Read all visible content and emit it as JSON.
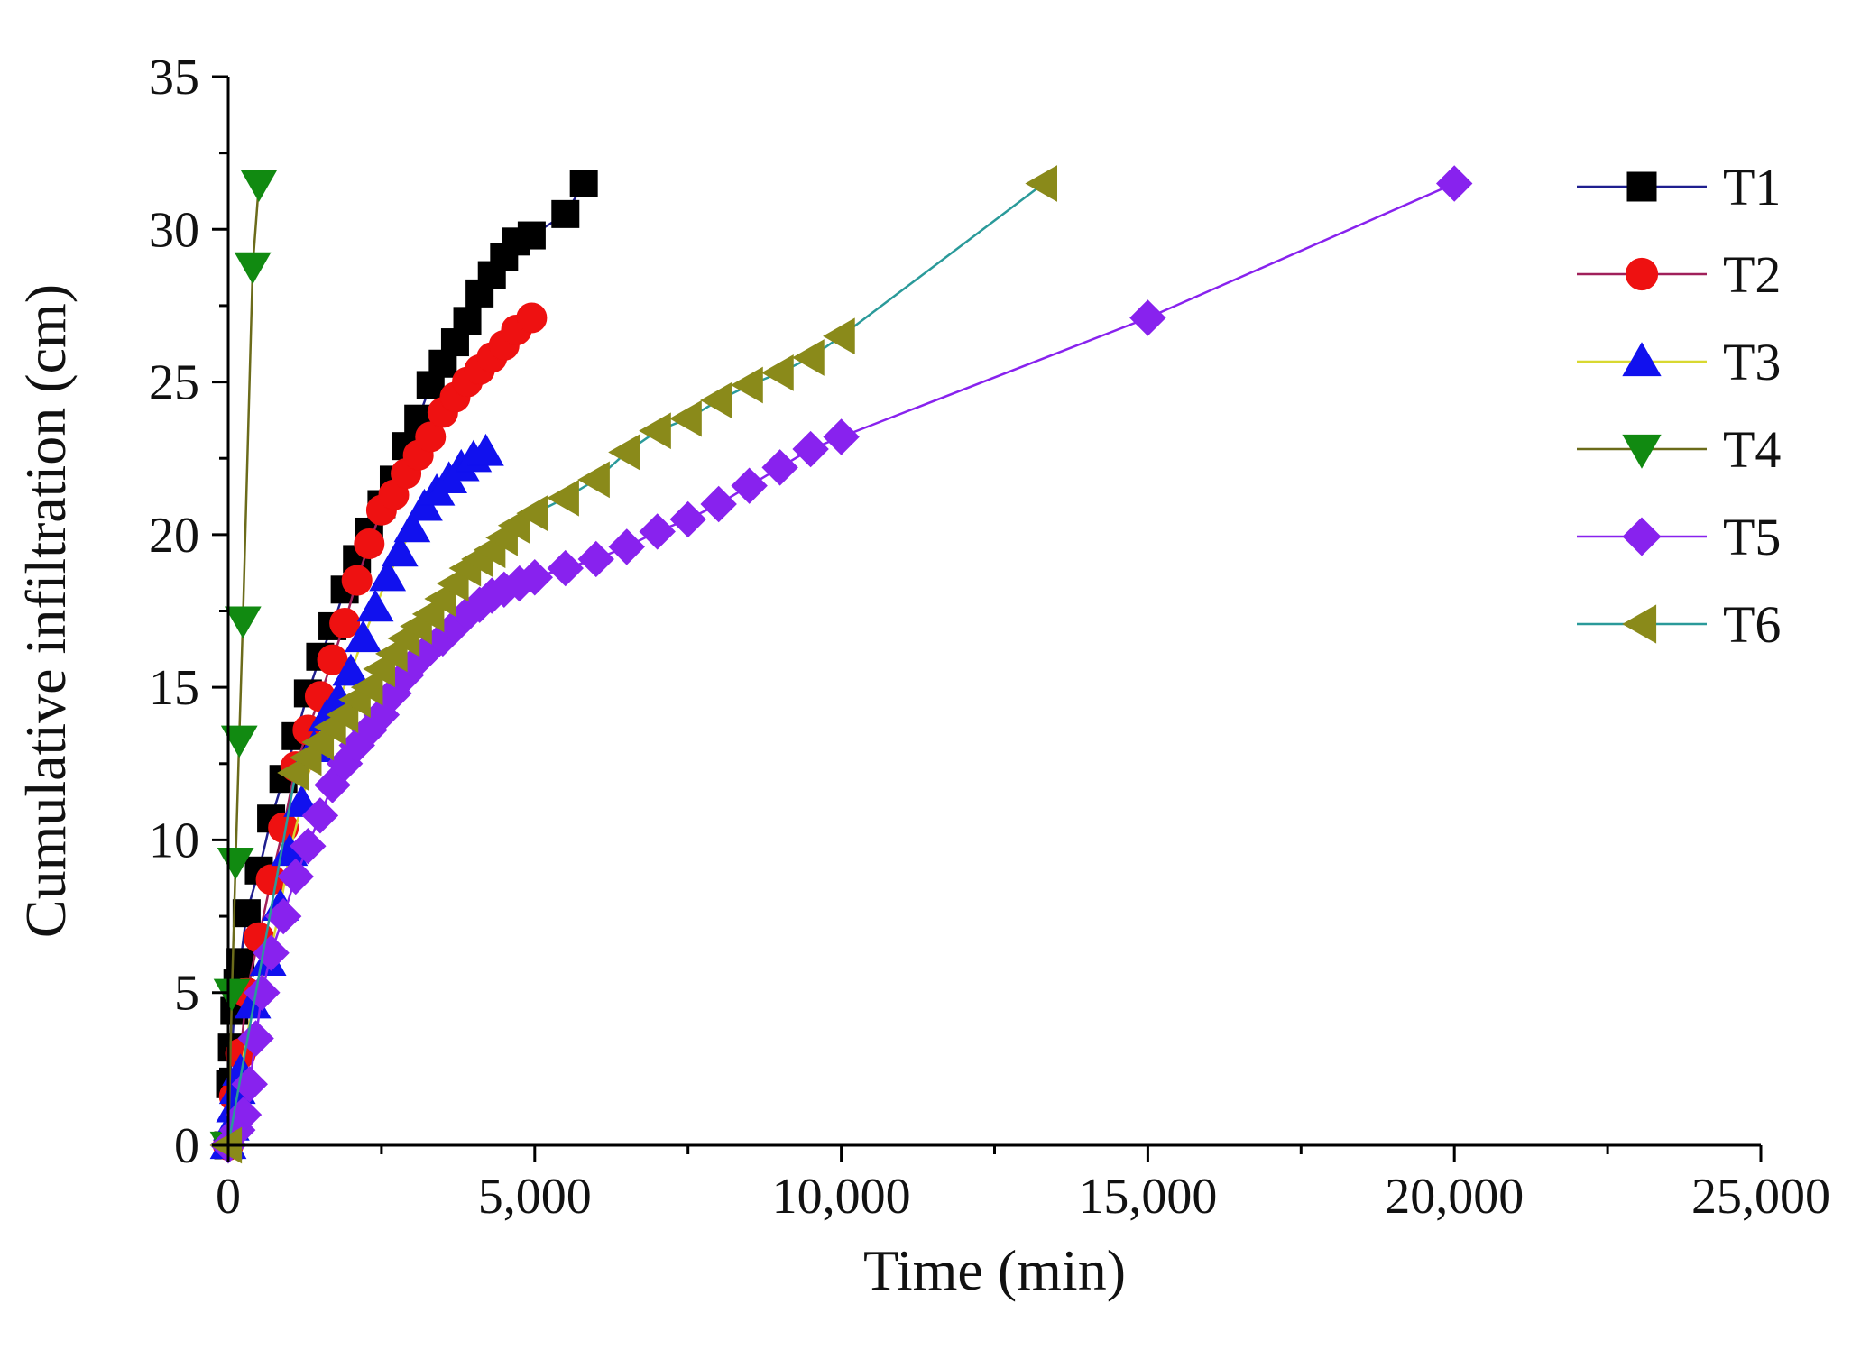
{
  "chart_data": {
    "type": "line",
    "title": "",
    "xlabel": "Time (min)",
    "ylabel": "Cumulative infiltration (cm)",
    "xlim": [
      0,
      25000
    ],
    "ylim": [
      0,
      35
    ],
    "x_ticks": [
      0,
      5000,
      10000,
      15000,
      20000,
      25000
    ],
    "x_tick_labels": [
      "0",
      "5,000",
      "10,000",
      "15,000",
      "20,000",
      "25,000"
    ],
    "y_ticks": [
      0,
      5,
      10,
      15,
      20,
      25,
      30,
      35
    ],
    "y_tick_labels": [
      "0",
      "5",
      "10",
      "15",
      "20",
      "25",
      "30",
      "35"
    ],
    "grid": false,
    "legend_position": "right",
    "series": [
      {
        "name": "T1",
        "marker": "square",
        "marker_color": "#000000",
        "line_color": "#1f1f8f",
        "points": [
          [
            0,
            0
          ],
          [
            30,
            2.0
          ],
          [
            60,
            3.2
          ],
          [
            100,
            4.4
          ],
          [
            150,
            5.3
          ],
          [
            200,
            6.0
          ],
          [
            300,
            7.6
          ],
          [
            500,
            9.0
          ],
          [
            700,
            10.7
          ],
          [
            900,
            12.0
          ],
          [
            1100,
            13.4
          ],
          [
            1300,
            14.8
          ],
          [
            1500,
            16.0
          ],
          [
            1700,
            17.0
          ],
          [
            1900,
            18.2
          ],
          [
            2100,
            19.2
          ],
          [
            2300,
            20.1
          ],
          [
            2500,
            21.0
          ],
          [
            2700,
            21.8
          ],
          [
            2900,
            22.9
          ],
          [
            3100,
            23.8
          ],
          [
            3300,
            24.9
          ],
          [
            3500,
            25.6
          ],
          [
            3700,
            26.3
          ],
          [
            3900,
            27.0
          ],
          [
            4100,
            27.9
          ],
          [
            4300,
            28.5
          ],
          [
            4500,
            29.1
          ],
          [
            4700,
            29.6
          ],
          [
            4950,
            29.8
          ],
          [
            5500,
            30.5
          ],
          [
            5800,
            31.5
          ]
        ]
      },
      {
        "name": "T2",
        "marker": "circle",
        "marker_color": "#ee1111",
        "line_color": "#a0205a",
        "points": [
          [
            0,
            0
          ],
          [
            100,
            1.6
          ],
          [
            200,
            3.0
          ],
          [
            300,
            5.0
          ],
          [
            500,
            6.8
          ],
          [
            700,
            8.7
          ],
          [
            900,
            10.4
          ],
          [
            1100,
            12.4
          ],
          [
            1300,
            13.6
          ],
          [
            1500,
            14.7
          ],
          [
            1700,
            15.9
          ],
          [
            1900,
            17.1
          ],
          [
            2100,
            18.5
          ],
          [
            2300,
            19.7
          ],
          [
            2500,
            20.8
          ],
          [
            2700,
            21.3
          ],
          [
            2900,
            22.0
          ],
          [
            3100,
            22.6
          ],
          [
            3300,
            23.2
          ],
          [
            3500,
            24.0
          ],
          [
            3700,
            24.5
          ],
          [
            3900,
            25.0
          ],
          [
            4100,
            25.4
          ],
          [
            4300,
            25.8
          ],
          [
            4500,
            26.2
          ],
          [
            4700,
            26.7
          ],
          [
            4950,
            27.1
          ]
        ]
      },
      {
        "name": "T3",
        "marker": "triangle-up",
        "marker_color": "#1111ee",
        "line_color": "#d8d830",
        "points": [
          [
            0,
            0
          ],
          [
            50,
            0.6
          ],
          [
            100,
            1.2
          ],
          [
            150,
            1.8
          ],
          [
            200,
            2.4
          ],
          [
            400,
            4.6
          ],
          [
            650,
            6.0
          ],
          [
            850,
            7.8
          ],
          [
            1000,
            9.6
          ],
          [
            1200,
            11.2
          ],
          [
            1400,
            13.0
          ],
          [
            1600,
            14.0
          ],
          [
            1800,
            14.6
          ],
          [
            2000,
            15.5
          ],
          [
            2200,
            16.6
          ],
          [
            2400,
            17.6
          ],
          [
            2600,
            18.6
          ],
          [
            2800,
            19.4
          ],
          [
            3000,
            20.2
          ],
          [
            3200,
            20.9
          ],
          [
            3400,
            21.4
          ],
          [
            3600,
            21.8
          ],
          [
            3800,
            22.2
          ],
          [
            4000,
            22.5
          ],
          [
            4200,
            22.7
          ]
        ]
      },
      {
        "name": "T4",
        "marker": "triangle-down",
        "marker_color": "#118a11",
        "line_color": "#6b6b1a",
        "points": [
          [
            0,
            0
          ],
          [
            60,
            5.0
          ],
          [
            120,
            9.3
          ],
          [
            180,
            13.3
          ],
          [
            240,
            17.2
          ],
          [
            400,
            28.8
          ],
          [
            500,
            31.5
          ]
        ]
      },
      {
        "name": "T5",
        "marker": "diamond",
        "marker_color": "#8822ee",
        "line_color": "#8822ee",
        "points": [
          [
            0,
            0
          ],
          [
            150,
            0.5
          ],
          [
            250,
            1.0
          ],
          [
            350,
            2.0
          ],
          [
            450,
            3.5
          ],
          [
            550,
            5.0
          ],
          [
            700,
            6.3
          ],
          [
            900,
            7.5
          ],
          [
            1100,
            8.8
          ],
          [
            1300,
            9.8
          ],
          [
            1500,
            10.8
          ],
          [
            1700,
            11.8
          ],
          [
            1900,
            12.5
          ],
          [
            2100,
            13.1
          ],
          [
            2300,
            13.6
          ],
          [
            2500,
            14.1
          ],
          [
            2700,
            14.8
          ],
          [
            2900,
            15.4
          ],
          [
            3100,
            15.9
          ],
          [
            3300,
            16.3
          ],
          [
            3500,
            16.6
          ],
          [
            3700,
            17.0
          ],
          [
            3900,
            17.4
          ],
          [
            4100,
            17.7
          ],
          [
            4300,
            18.0
          ],
          [
            4500,
            18.2
          ],
          [
            4750,
            18.4
          ],
          [
            5000,
            18.6
          ],
          [
            5500,
            18.9
          ],
          [
            6000,
            19.2
          ],
          [
            6500,
            19.6
          ],
          [
            7000,
            20.1
          ],
          [
            7500,
            20.5
          ],
          [
            8000,
            21.0
          ],
          [
            8500,
            21.6
          ],
          [
            9000,
            22.2
          ],
          [
            9500,
            22.8
          ],
          [
            10000,
            23.2
          ],
          [
            15000,
            27.1
          ],
          [
            20000,
            31.5
          ]
        ]
      },
      {
        "name": "T6",
        "marker": "triangle-left",
        "marker_color": "#8a8a1a",
        "line_color": "#2a9a9a",
        "points": [
          [
            0,
            0
          ],
          [
            1100,
            12.2
          ],
          [
            1300,
            12.7
          ],
          [
            1500,
            13.2
          ],
          [
            1700,
            13.7
          ],
          [
            1900,
            14.1
          ],
          [
            2100,
            14.6
          ],
          [
            2300,
            15.0
          ],
          [
            2500,
            15.6
          ],
          [
            2700,
            16.1
          ],
          [
            2900,
            16.6
          ],
          [
            3100,
            17.0
          ],
          [
            3300,
            17.4
          ],
          [
            3500,
            17.9
          ],
          [
            3700,
            18.4
          ],
          [
            3900,
            18.9
          ],
          [
            4100,
            19.2
          ],
          [
            4300,
            19.5
          ],
          [
            4500,
            19.9
          ],
          [
            4700,
            20.3
          ],
          [
            5000,
            20.7
          ],
          [
            5500,
            21.2
          ],
          [
            6000,
            21.8
          ],
          [
            6500,
            22.7
          ],
          [
            7000,
            23.4
          ],
          [
            7500,
            23.8
          ],
          [
            8000,
            24.4
          ],
          [
            8500,
            24.9
          ],
          [
            9000,
            25.3
          ],
          [
            9500,
            25.8
          ],
          [
            10000,
            26.5
          ],
          [
            13300,
            31.5
          ]
        ]
      }
    ]
  }
}
